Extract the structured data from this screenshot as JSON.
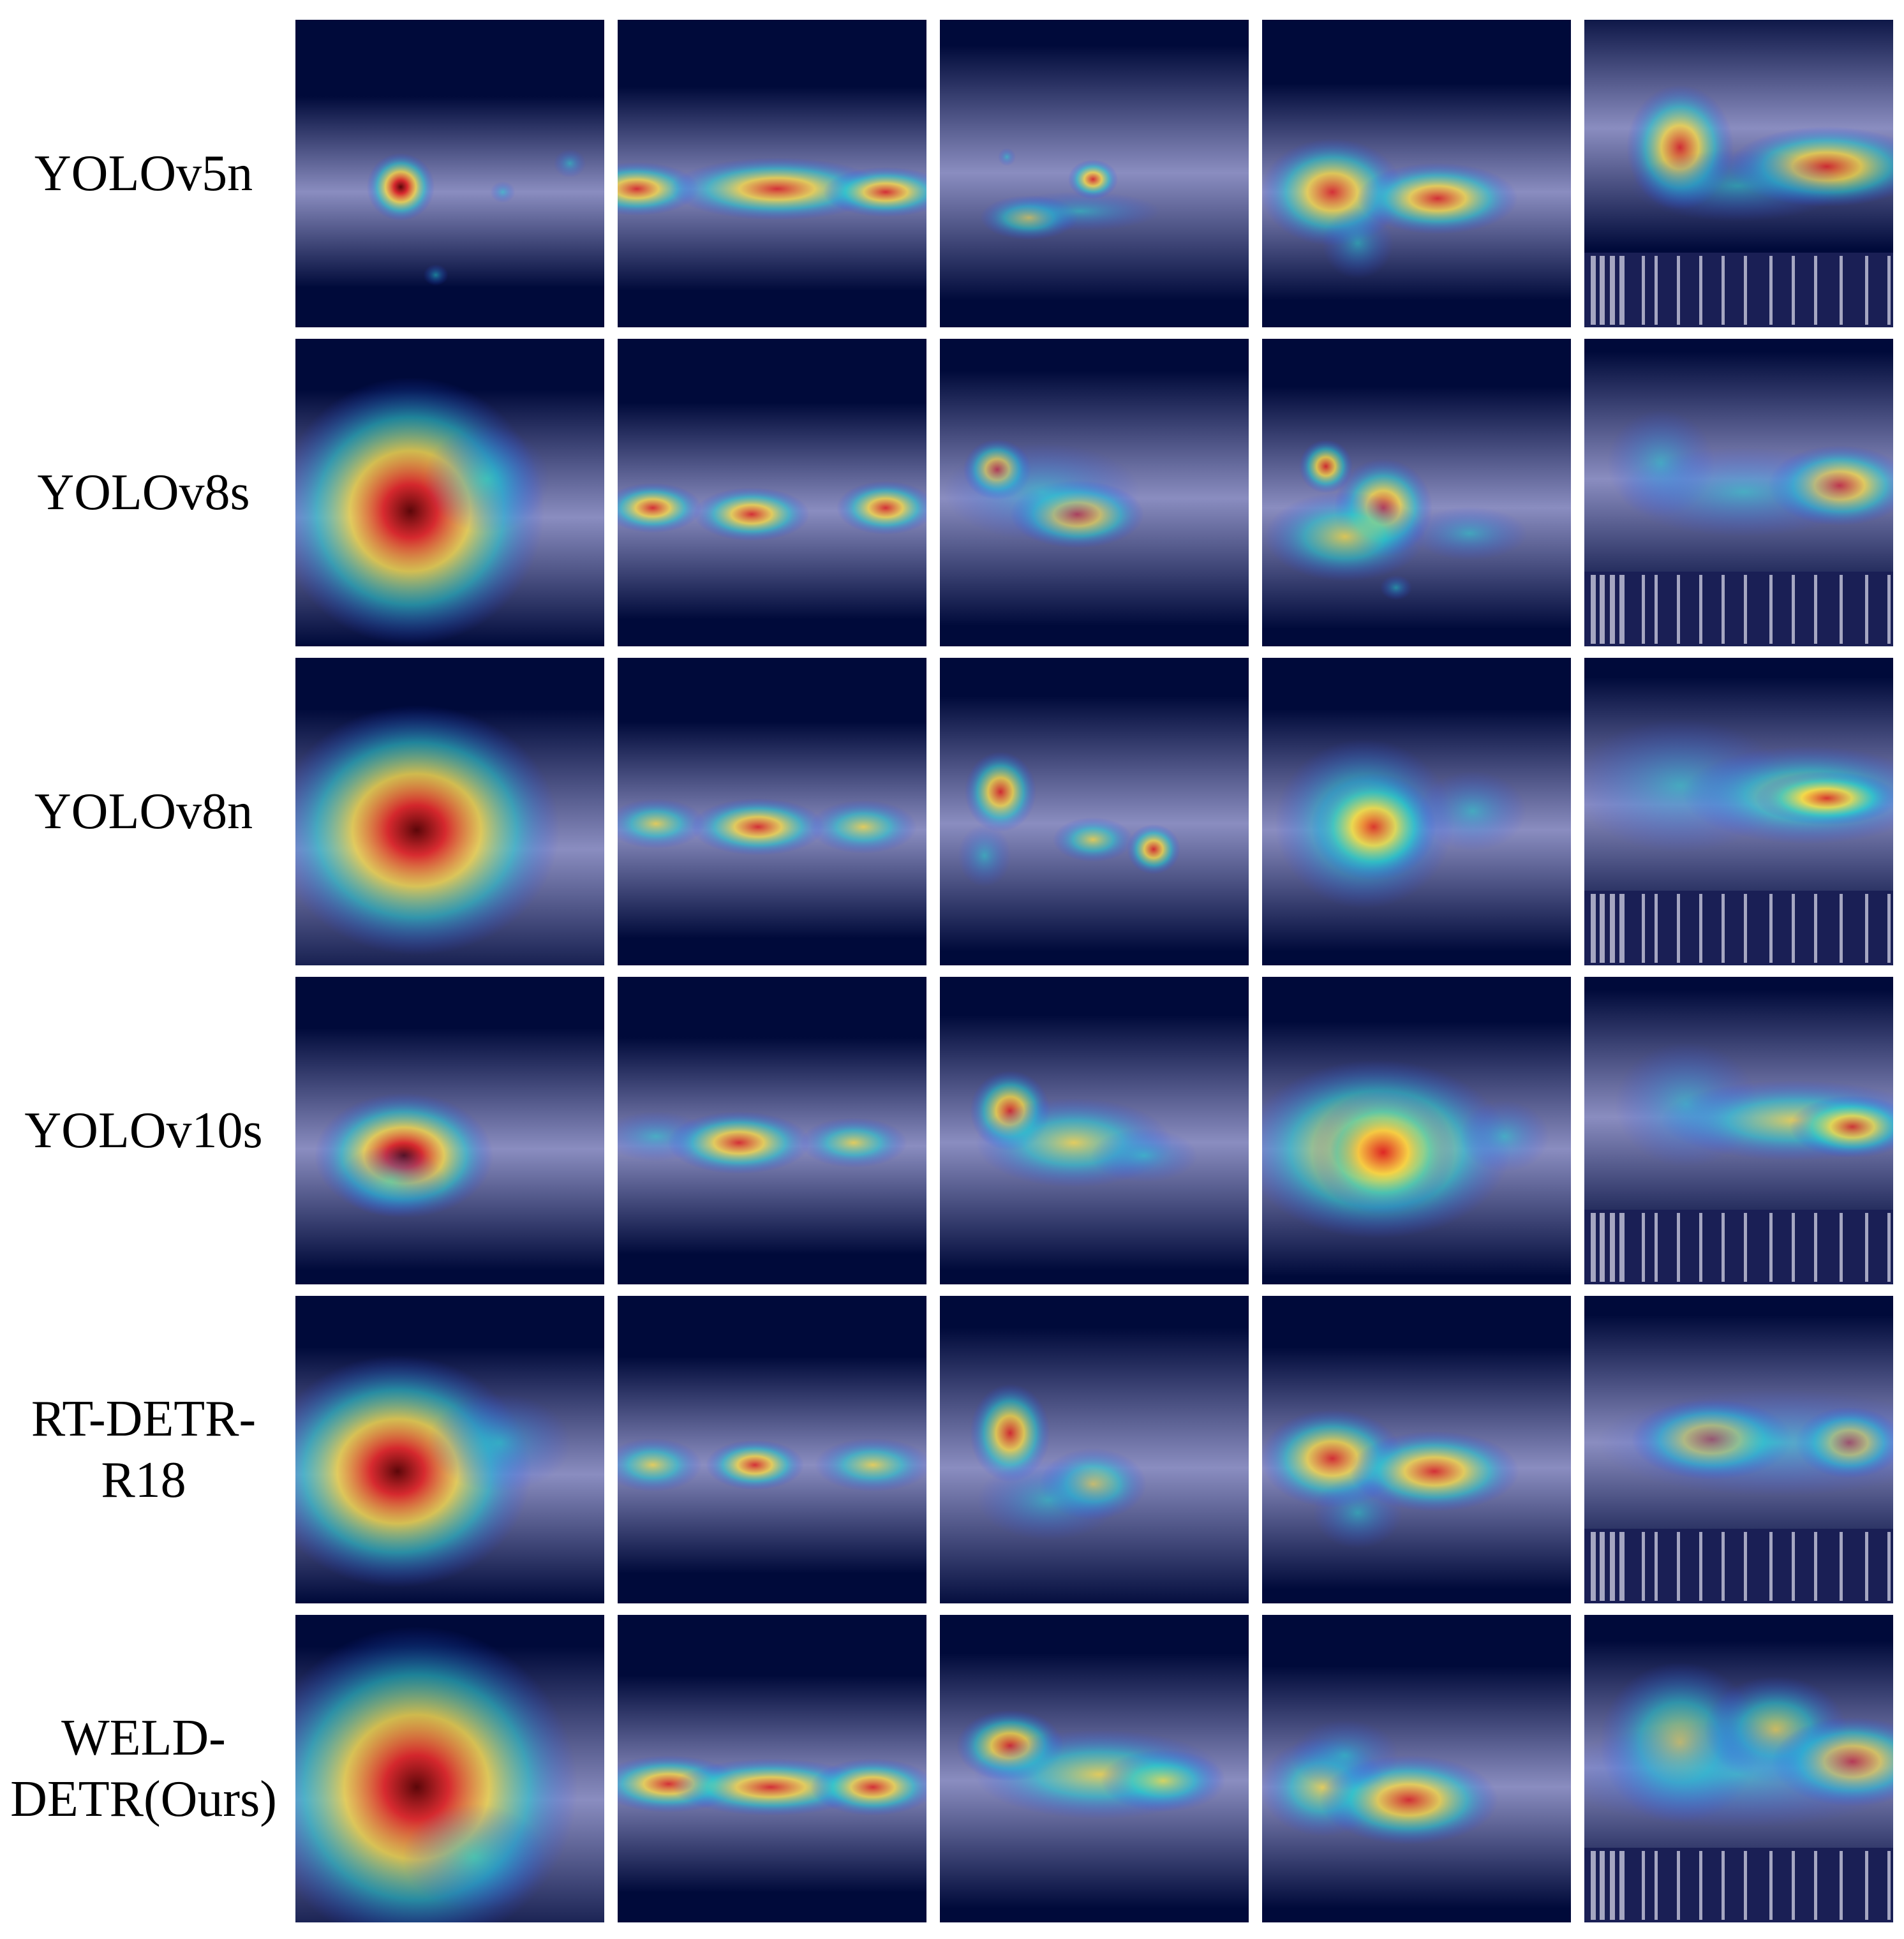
{
  "figure": {
    "row_labels": [
      "YOLOv5n",
      "YOLOv8s",
      "YOLOv8n",
      "YOLOv10s",
      "RT-DETR-\nR18",
      "WELD-\nDETR(Ours)"
    ],
    "column_count": 5,
    "colors": {
      "background": "#ffffff",
      "image_dark": "#000a3a",
      "weld_band": "#8a8dc0",
      "heat_low": "#2a40ff",
      "heat_mid_cyan": "#20d0d0",
      "heat_mid_yellow": "#ffe040",
      "heat_high": "#e02020",
      "heat_peak": "#5a0000"
    }
  }
}
